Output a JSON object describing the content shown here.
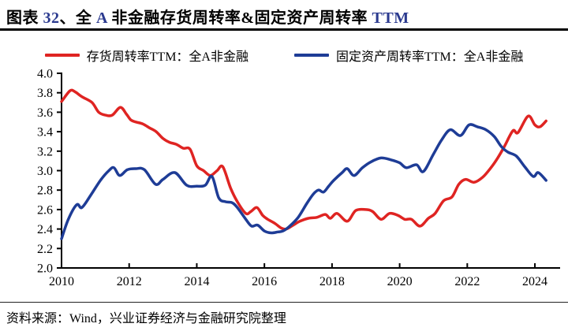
{
  "title": {
    "full_text": "图表 32、全 A 非金融存货周转率&固定资产周转率 TTM",
    "parts": [
      {
        "text": "图表 ",
        "color": "#000000"
      },
      {
        "text": "32",
        "color": "#2b3a8f"
      },
      {
        "text": "、全 ",
        "color": "#000000"
      },
      {
        "text": "A",
        "color": "#2b3a8f"
      },
      {
        "text": " 非金融存货周转率&固定资产周转率 ",
        "color": "#000000"
      },
      {
        "text": "TTM",
        "color": "#2b3a8f"
      }
    ]
  },
  "legend": [
    {
      "label": "存货周转率TTM：全A非金融",
      "color": "#df2422"
    },
    {
      "label": "固定资产周转率TTM：全A非金融",
      "color": "#1e3c96"
    }
  ],
  "footer": {
    "text": "资料来源：Wind，兴业证券经济与金融研究院整理"
  },
  "chart_data": {
    "type": "line",
    "title": "图表 32、全 A 非金融存货周转率&固定资产周转率 TTM",
    "xlabel": "",
    "ylabel": "",
    "grid": false,
    "legend_position": "top-center",
    "ylim": [
      2.0,
      4.0
    ],
    "yticks": [
      "4.0",
      "3.8",
      "3.6",
      "3.4",
      "3.2",
      "3.0",
      "2.8",
      "2.6",
      "2.4",
      "2.2",
      "2.0"
    ],
    "ytick_values": [
      4.0,
      3.8,
      3.6,
      3.4,
      3.2,
      3.0,
      2.8,
      2.6,
      2.4,
      2.2,
      2.0
    ],
    "xlim": [
      2010,
      2024.74
    ],
    "xticks": [
      "2010",
      "2012",
      "2014",
      "2016",
      "2018",
      "2020",
      "2022",
      "2024"
    ],
    "xtick_values": [
      2010,
      2012,
      2014,
      2016,
      2018,
      2020,
      2022,
      2024
    ],
    "axis_color": "#000000",
    "series": [
      {
        "name": "存货周转率TTM：全A非金融",
        "color": "#df2422",
        "x": [
          2010.0,
          2010.25,
          2010.4,
          2010.6,
          2010.9,
          2011.1,
          2011.3,
          2011.5,
          2011.74,
          2011.92,
          2012.05,
          2012.2,
          2012.4,
          2012.6,
          2012.8,
          2013.0,
          2013.2,
          2013.4,
          2013.6,
          2013.8,
          2014.0,
          2014.2,
          2014.4,
          2014.6,
          2014.77,
          2015.0,
          2015.2,
          2015.45,
          2015.6,
          2015.78,
          2015.95,
          2016.1,
          2016.3,
          2016.5,
          2016.65,
          2016.85,
          2017.05,
          2017.3,
          2017.55,
          2017.8,
          2017.95,
          2018.15,
          2018.45,
          2018.7,
          2019.0,
          2019.2,
          2019.45,
          2019.7,
          2019.95,
          2020.15,
          2020.35,
          2020.6,
          2020.85,
          2021.05,
          2021.3,
          2021.55,
          2021.75,
          2021.95,
          2022.2,
          2022.45,
          2022.7,
          2022.9,
          2023.1,
          2023.35,
          2023.5,
          2023.8,
          2024.0,
          2024.15,
          2024.33
        ],
        "y": [
          3.71,
          3.82,
          3.81,
          3.76,
          3.7,
          3.6,
          3.57,
          3.57,
          3.65,
          3.58,
          3.52,
          3.5,
          3.48,
          3.44,
          3.4,
          3.33,
          3.29,
          3.27,
          3.23,
          3.22,
          3.05,
          3.0,
          2.95,
          3.0,
          3.04,
          2.82,
          2.68,
          2.56,
          2.58,
          2.62,
          2.54,
          2.5,
          2.46,
          2.41,
          2.4,
          2.44,
          2.48,
          2.51,
          2.52,
          2.55,
          2.51,
          2.56,
          2.48,
          2.59,
          2.6,
          2.58,
          2.5,
          2.56,
          2.54,
          2.5,
          2.5,
          2.43,
          2.51,
          2.56,
          2.69,
          2.73,
          2.86,
          2.91,
          2.88,
          2.93,
          3.03,
          3.13,
          3.25,
          3.41,
          3.39,
          3.56,
          3.47,
          3.45,
          3.51
        ]
      },
      {
        "name": "固定资产周转率TTM：全A非金融",
        "color": "#1e3c96",
        "x": [
          2010.0,
          2010.2,
          2010.45,
          2010.6,
          2010.85,
          2011.15,
          2011.4,
          2011.55,
          2011.72,
          2011.95,
          2012.2,
          2012.45,
          2012.78,
          2013.0,
          2013.35,
          2013.7,
          2014.0,
          2014.25,
          2014.45,
          2014.65,
          2014.85,
          2015.05,
          2015.2,
          2015.45,
          2015.62,
          2015.8,
          2016.0,
          2016.2,
          2016.4,
          2016.55,
          2016.75,
          2017.0,
          2017.25,
          2017.45,
          2017.6,
          2017.75,
          2017.9,
          2018.05,
          2018.3,
          2018.45,
          2018.65,
          2018.9,
          2019.15,
          2019.45,
          2019.75,
          2020.0,
          2020.2,
          2020.5,
          2020.7,
          2021.0,
          2021.25,
          2021.5,
          2021.8,
          2022.05,
          2022.3,
          2022.55,
          2022.8,
          2023.0,
          2023.2,
          2023.45,
          2023.7,
          2023.95,
          2024.1,
          2024.33
        ],
        "y": [
          2.3,
          2.5,
          2.65,
          2.62,
          2.74,
          2.9,
          3.0,
          3.03,
          2.95,
          3.01,
          3.02,
          3.01,
          2.86,
          2.91,
          2.98,
          2.85,
          2.84,
          2.85,
          2.94,
          2.72,
          2.68,
          2.67,
          2.62,
          2.5,
          2.43,
          2.44,
          2.38,
          2.36,
          2.37,
          2.38,
          2.43,
          2.52,
          2.66,
          2.76,
          2.8,
          2.78,
          2.84,
          2.9,
          2.98,
          3.02,
          2.95,
          3.03,
          3.09,
          3.13,
          3.11,
          3.08,
          3.03,
          3.06,
          2.99,
          3.17,
          3.32,
          3.42,
          3.36,
          3.47,
          3.45,
          3.42,
          3.35,
          3.25,
          3.19,
          3.15,
          3.04,
          2.94,
          2.98,
          2.9
        ]
      }
    ]
  }
}
